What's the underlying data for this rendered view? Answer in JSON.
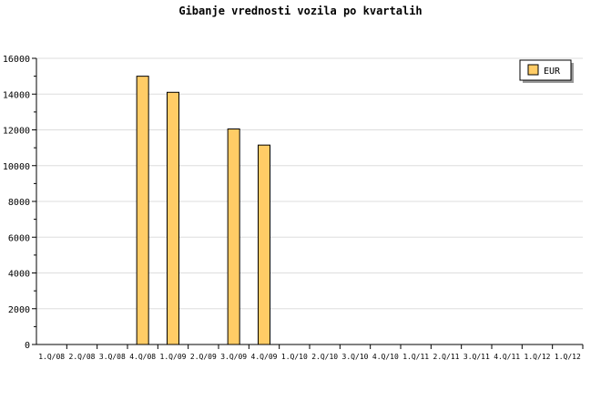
{
  "chart_data": {
    "type": "bar",
    "title": "Gibanje vrednosti vozila po kvartalih",
    "xlabel": "",
    "ylabel": "",
    "categories": [
      "1.Q/08",
      "2.Q/08",
      "3.Q/08",
      "4.Q/08",
      "1.Q/09",
      "2.Q/09",
      "3.Q/09",
      "4.Q/09",
      "1.Q/10",
      "2.Q/10",
      "3.Q/10",
      "4.Q/10",
      "1.Q/11",
      "2.Q/11",
      "3.Q/11",
      "4.Q/11",
      "1.Q/12",
      "1.Q/12"
    ],
    "series": [
      {
        "name": "EUR",
        "color": "#ffcc66",
        "values": [
          null,
          null,
          null,
          15000,
          14100,
          null,
          12050,
          11150,
          null,
          null,
          null,
          null,
          null,
          null,
          null,
          null,
          null,
          null
        ]
      }
    ],
    "ylim": [
      0,
      16000
    ],
    "yticks": [
      0,
      2000,
      4000,
      6000,
      8000,
      10000,
      12000,
      14000,
      16000
    ],
    "grid": true,
    "legend": "top-right"
  }
}
